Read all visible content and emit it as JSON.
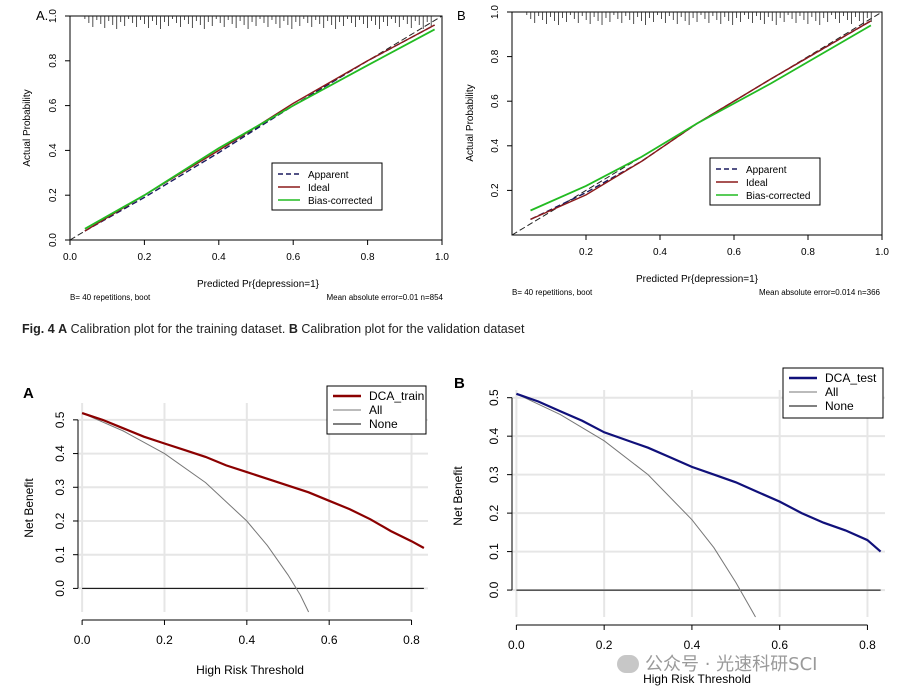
{
  "figure_caption": {
    "label": "Fig. 4",
    "part_a_letter": "A",
    "part_a_text": "Calibration plot for the training dataset.",
    "part_b_letter": "B",
    "part_b_text": "Calibration plot for the validation dataset"
  },
  "watermark": "公众号 · 光速科研SCI",
  "colors": {
    "apparent": "#1a1a5e",
    "ideal": "#8b1a1a",
    "bias_corrected": "#22bb22",
    "dca_train": "#8b0000",
    "dca_test": "#10107a",
    "all": "#777777",
    "none": "#000000",
    "grid": "#e6e6e6"
  },
  "chart_data": [
    {
      "type": "line",
      "panel_label": "A.",
      "xlabel": "Predicted Pr{depression=1}",
      "ylabel": "Actual Probability",
      "xlim": [
        0,
        1
      ],
      "ylim": [
        0,
        1
      ],
      "xticks": [
        "0.0",
        "0.2",
        "0.4",
        "0.6",
        "0.8",
        "1.0"
      ],
      "yticks": [
        "0.0",
        "0.2",
        "0.4",
        "0.6",
        "0.8",
        "1.0"
      ],
      "legend_position": "bottom-right",
      "footnote_left": "B= 40 repetitions, boot",
      "footnote_right": "Mean absolute error=0.01 n=854",
      "series": [
        {
          "name": "Apparent",
          "style": "dashed",
          "x": [
            0.04,
            0.2,
            0.4,
            0.6,
            0.8,
            0.98
          ],
          "y": [
            0.04,
            0.19,
            0.39,
            0.6,
            0.8,
            0.96
          ]
        },
        {
          "name": "Ideal",
          "style": "solid",
          "x": [
            0.04,
            0.2,
            0.4,
            0.6,
            0.8,
            0.98
          ],
          "y": [
            0.04,
            0.2,
            0.4,
            0.61,
            0.8,
            0.96
          ]
        },
        {
          "name": "Bias-corrected",
          "style": "solid",
          "x": [
            0.04,
            0.2,
            0.4,
            0.6,
            0.8,
            0.98
          ],
          "y": [
            0.05,
            0.2,
            0.41,
            0.6,
            0.78,
            0.94
          ]
        }
      ],
      "rug": true,
      "diagonal": true
    },
    {
      "type": "line",
      "panel_label": "B",
      "xlabel": "Predicted Pr{depression=1}",
      "ylabel": "Actual Probability",
      "xlim": [
        0,
        1
      ],
      "ylim": [
        0,
        1
      ],
      "xticks": [
        "0.2",
        "0.4",
        "0.6",
        "0.8",
        "1.0"
      ],
      "yticks": [
        "0.2",
        "0.4",
        "0.6",
        "0.8",
        "1.0"
      ],
      "legend_position": "bottom-right",
      "footnote_left": "B= 40 repetitions, boot",
      "footnote_right": "Mean absolute error=0.014 n=366",
      "series": [
        {
          "name": "Apparent",
          "style": "dashed",
          "x": [
            0.05,
            0.2,
            0.35,
            0.5,
            0.7,
            0.97
          ],
          "y": [
            0.07,
            0.19,
            0.33,
            0.5,
            0.7,
            0.96
          ]
        },
        {
          "name": "Ideal",
          "style": "solid",
          "x": [
            0.05,
            0.2,
            0.35,
            0.5,
            0.7,
            0.97
          ],
          "y": [
            0.07,
            0.18,
            0.33,
            0.5,
            0.7,
            0.96
          ]
        },
        {
          "name": "Bias-corrected",
          "style": "solid",
          "x": [
            0.05,
            0.2,
            0.35,
            0.5,
            0.7,
            0.97
          ],
          "y": [
            0.11,
            0.22,
            0.35,
            0.5,
            0.68,
            0.94
          ]
        }
      ],
      "rug": true,
      "diagonal": true
    },
    {
      "type": "line",
      "panel_label": "A",
      "xlabel": "High Risk Threshold",
      "ylabel": "Net Benefit",
      "xlim": [
        -0.01,
        0.84
      ],
      "ylim": [
        -0.07,
        0.55
      ],
      "xticks": [
        "0.0",
        "0.2",
        "0.4",
        "0.6",
        "0.8"
      ],
      "yticks": [
        "0.0",
        "0.1",
        "0.2",
        "0.3",
        "0.4",
        "0.5"
      ],
      "legend_position": "top-right",
      "series": [
        {
          "name": "DCA_train",
          "x": [
            0.0,
            0.05,
            0.1,
            0.15,
            0.2,
            0.25,
            0.3,
            0.35,
            0.4,
            0.45,
            0.5,
            0.55,
            0.6,
            0.65,
            0.7,
            0.75,
            0.8,
            0.83
          ],
          "y": [
            0.52,
            0.5,
            0.475,
            0.45,
            0.43,
            0.41,
            0.39,
            0.365,
            0.345,
            0.325,
            0.305,
            0.285,
            0.26,
            0.235,
            0.205,
            0.17,
            0.14,
            0.12
          ]
        },
        {
          "name": "All",
          "x": [
            0.0,
            0.1,
            0.2,
            0.3,
            0.4,
            0.45,
            0.5,
            0.53,
            0.55
          ],
          "y": [
            0.52,
            0.467,
            0.4,
            0.314,
            0.2,
            0.127,
            0.04,
            -0.02,
            -0.07
          ]
        },
        {
          "name": "None",
          "x": [
            0.0,
            0.83
          ],
          "y": [
            0.0,
            0.0
          ]
        }
      ]
    },
    {
      "type": "line",
      "panel_label": "B",
      "xlabel": "High Risk Threshold",
      "ylabel": "Net Benefit",
      "xlim": [
        -0.01,
        0.84
      ],
      "ylim": [
        -0.07,
        0.52
      ],
      "xticks": [
        "0.0",
        "0.2",
        "0.4",
        "0.6",
        "0.8"
      ],
      "yticks": [
        "0.0",
        "0.1",
        "0.2",
        "0.3",
        "0.4",
        "0.5"
      ],
      "legend_position": "top-right",
      "series": [
        {
          "name": "DCA_test",
          "x": [
            0.0,
            0.05,
            0.1,
            0.15,
            0.2,
            0.25,
            0.3,
            0.35,
            0.4,
            0.45,
            0.5,
            0.55,
            0.6,
            0.65,
            0.7,
            0.75,
            0.8,
            0.83
          ],
          "y": [
            0.51,
            0.49,
            0.465,
            0.44,
            0.41,
            0.39,
            0.37,
            0.345,
            0.32,
            0.3,
            0.28,
            0.255,
            0.23,
            0.2,
            0.175,
            0.155,
            0.13,
            0.1
          ]
        },
        {
          "name": "All",
          "x": [
            0.0,
            0.1,
            0.2,
            0.3,
            0.4,
            0.45,
            0.5,
            0.53,
            0.545
          ],
          "y": [
            0.51,
            0.456,
            0.388,
            0.3,
            0.183,
            0.11,
            0.02,
            -0.04,
            -0.07
          ]
        },
        {
          "name": "None",
          "x": [
            0.0,
            0.83
          ],
          "y": [
            0.0,
            0.0
          ]
        }
      ]
    }
  ]
}
